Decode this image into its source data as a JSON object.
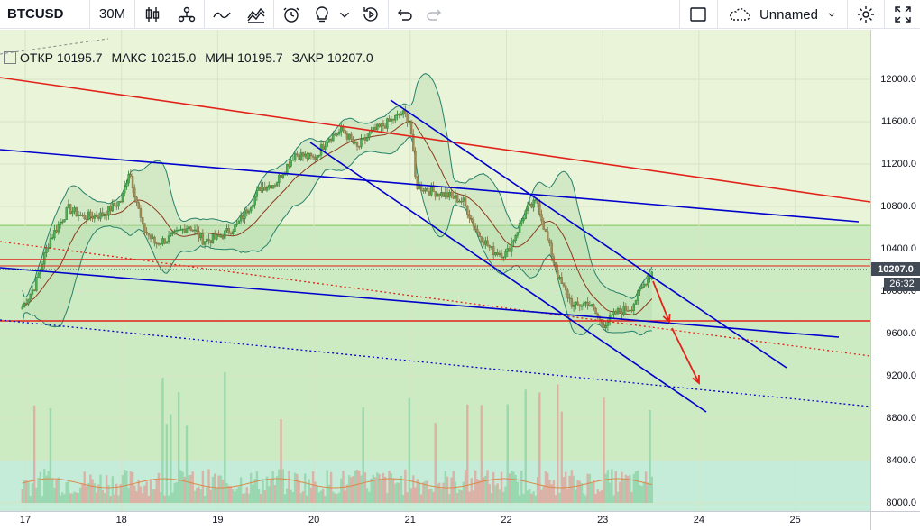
{
  "toolbar": {
    "symbol": "BTCUSD",
    "interval": "30M",
    "layout_name": "Unnamed",
    "icons": [
      "candles-icon",
      "indicators-icon",
      "line-tool-icon",
      "compare-icon",
      "alert-icon",
      "idea-icon",
      "dropdown-icon",
      "replay-icon",
      "undo-icon",
      "redo-icon",
      "fullscreen-square-icon",
      "cloud-icon",
      "settings-icon",
      "expand-icon"
    ]
  },
  "legend": {
    "open_label": "ОТКР",
    "open_value": "10195.7",
    "high_label": "МАКС",
    "high_value": "10215.0",
    "low_label": "МИН",
    "low_value": "10195.7",
    "close_label": "ЗАКР",
    "close_value": "10207.0"
  },
  "price_axis": {
    "labels": [
      "12000.0",
      "11600.0",
      "11200.0",
      "10800.0",
      "10400.0",
      "10000.0",
      "9600.0",
      "9200.0",
      "8800.0",
      "8400.0",
      "8000.0"
    ],
    "current_price": "10207.0",
    "countdown": "26:32"
  },
  "time_axis": {
    "labels": [
      "17",
      "18",
      "19",
      "20",
      "21",
      "22",
      "23",
      "24",
      "25"
    ]
  },
  "colors": {
    "background": "#eaf4d9",
    "zone_green": "#cdebc2",
    "zone_cyan": "#c4ecd9",
    "red_line": "#e2231a",
    "blue_line": "#0000cc",
    "candle_up": "#2e7d32",
    "candle_down": "#7d6a3b",
    "bollinger": "#26806a",
    "ma": "#8b3a1a"
  },
  "chart_data": {
    "type": "candlestick",
    "x_axis": [
      "17",
      "18",
      "19",
      "20",
      "21",
      "22",
      "23",
      "24",
      "25"
    ],
    "ylim": [
      7980,
      12300
    ],
    "close_path": [
      [
        16.97,
        9850
      ],
      [
        17.1,
        10050
      ],
      [
        17.25,
        10480
      ],
      [
        17.45,
        10780
      ],
      [
        17.6,
        10700
      ],
      [
        17.8,
        10720
      ],
      [
        18.0,
        10860
      ],
      [
        18.08,
        11150
      ],
      [
        18.22,
        10600
      ],
      [
        18.35,
        10450
      ],
      [
        18.5,
        10500
      ],
      [
        18.7,
        10620
      ],
      [
        18.85,
        10480
      ],
      [
        19.0,
        10500
      ],
      [
        19.2,
        10620
      ],
      [
        19.45,
        10980
      ],
      [
        19.6,
        11020
      ],
      [
        19.8,
        11300
      ],
      [
        20.0,
        11250
      ],
      [
        20.15,
        11450
      ],
      [
        20.3,
        11520
      ],
      [
        20.45,
        11350
      ],
      [
        20.6,
        11500
      ],
      [
        20.75,
        11580
      ],
      [
        20.92,
        11680
      ],
      [
        21.0,
        11600
      ],
      [
        21.06,
        11000
      ],
      [
        21.2,
        10950
      ],
      [
        21.4,
        10900
      ],
      [
        21.55,
        10850
      ],
      [
        21.7,
        10550
      ],
      [
        21.85,
        10380
      ],
      [
        22.0,
        10350
      ],
      [
        22.2,
        10750
      ],
      [
        22.32,
        10850
      ],
      [
        22.42,
        10500
      ],
      [
        22.55,
        10100
      ],
      [
        22.7,
        9850
      ],
      [
        22.85,
        9900
      ],
      [
        23.0,
        9680
      ],
      [
        23.15,
        9800
      ],
      [
        23.3,
        9850
      ],
      [
        23.45,
        10100
      ],
      [
        23.53,
        10207
      ]
    ],
    "horizontal_levels": [
      10300,
      10260,
      9700
    ],
    "last": 10207.0
  }
}
